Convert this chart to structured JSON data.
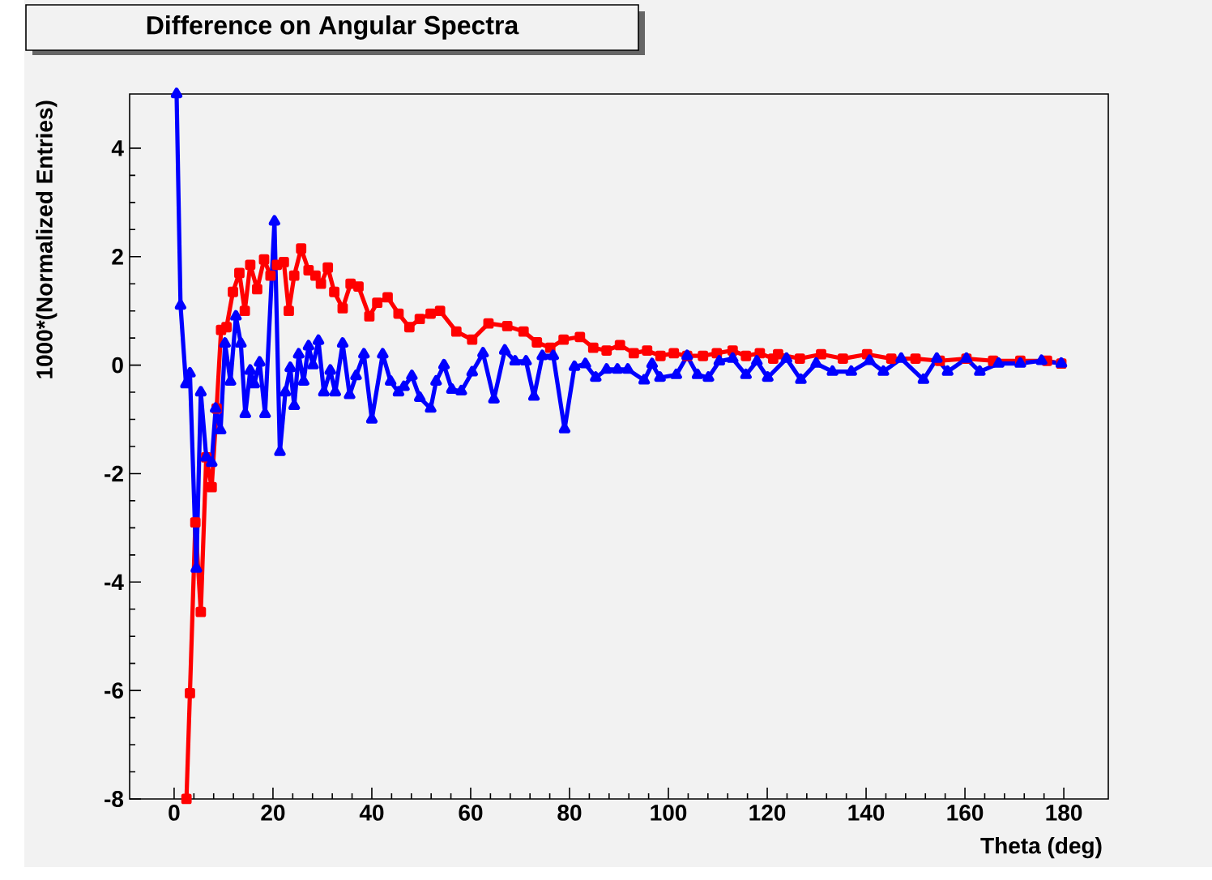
{
  "chart_data": {
    "type": "line",
    "title": "Difference on Angular Spectra",
    "xlabel": "Theta (deg)",
    "ylabel": "1000*(Normalized Entries)",
    "xlim": [
      -9,
      189
    ],
    "ylim": [
      -8,
      5
    ],
    "xticks": [
      0,
      20,
      40,
      60,
      80,
      100,
      120,
      140,
      160,
      180
    ],
    "yticks": [
      -8,
      -6,
      -4,
      -2,
      0,
      2,
      4
    ],
    "series": [
      {
        "color": "#ff0000",
        "marker": "square",
        "x": [
          2.5,
          3.2,
          4.3,
          5.4,
          6.5,
          7.6,
          8.6,
          9.5,
          10.6,
          11.9,
          13.2,
          14.3,
          15.4,
          16.8,
          18.2,
          19.5,
          20.8,
          22.2,
          23.2,
          24.3,
          25.7,
          27.2,
          28.6,
          29.7,
          31.1,
          32.4,
          34.1,
          35.7,
          37.3,
          39.5,
          41.1,
          43.2,
          45.4,
          47.6,
          49.7,
          51.9,
          53.8,
          57.1,
          60.3,
          63.6,
          67.4,
          70.7,
          73.4,
          76.1,
          78.8,
          82.1,
          84.8,
          87.5,
          90.2,
          93,
          95.7,
          98.4,
          101.1,
          103.8,
          107,
          109.8,
          113,
          115.7,
          118.5,
          121.2,
          122.2,
          126.6,
          130.9,
          135.3,
          140.2,
          145.1,
          150,
          154.9,
          160.3,
          165.7,
          171.2,
          176.6,
          179.5
        ],
        "values": [
          -8,
          -6.05,
          -2.9,
          -4.55,
          -1.7,
          -2.25,
          -0.8,
          0.65,
          0.7,
          1.35,
          1.7,
          1.0,
          1.85,
          1.4,
          1.95,
          1.65,
          1.85,
          1.9,
          1.0,
          1.65,
          2.15,
          1.75,
          1.65,
          1.5,
          1.8,
          1.35,
          1.05,
          1.5,
          1.45,
          0.9,
          1.15,
          1.25,
          0.95,
          0.7,
          0.85,
          0.95,
          1.0,
          0.62,
          0.47,
          0.77,
          0.72,
          0.62,
          0.42,
          0.32,
          0.47,
          0.52,
          0.32,
          0.27,
          0.37,
          0.22,
          0.27,
          0.17,
          0.22,
          0.17,
          0.17,
          0.22,
          0.27,
          0.17,
          0.22,
          0.12,
          0.2,
          0.12,
          0.2,
          0.12,
          0.2,
          0.12,
          0.12,
          0.08,
          0.12,
          0.08,
          0.08,
          0.08,
          0.03
        ]
      },
      {
        "color": "#0000ff",
        "marker": "triangle",
        "x": [
          0.5,
          1.3,
          2.4,
          3.2,
          4.5,
          5.4,
          6.5,
          7.6,
          8.4,
          9.4,
          10.3,
          11.4,
          12.5,
          13.5,
          14.4,
          15.4,
          16.2,
          17.3,
          18.4,
          20.3,
          21.4,
          22.5,
          23.5,
          24.3,
          25.2,
          26.2,
          27.2,
          28.1,
          29.2,
          30.3,
          31.6,
          32.6,
          34.1,
          35.5,
          36.8,
          38.4,
          40,
          42.2,
          43.8,
          45.4,
          46.5,
          48.1,
          49.7,
          51.9,
          53,
          54.6,
          56.2,
          58.1,
          60.3,
          62.5,
          64.7,
          66.9,
          69,
          71.2,
          72.8,
          74.5,
          76.7,
          79,
          81,
          83.2,
          85.3,
          87.5,
          89.7,
          91.8,
          95.1,
          96.7,
          98.3,
          101.6,
          103.8,
          105.9,
          108.1,
          110.3,
          113,
          115.7,
          117.9,
          120.1,
          123.9,
          126.8,
          129.9,
          133.2,
          137,
          140.7,
          143.5,
          147.1,
          151.6,
          154.3,
          156.5,
          160.3,
          163,
          166.8,
          171.2,
          175.5,
          179.5
        ],
        "values": [
          5,
          1.1,
          -0.35,
          -0.15,
          -3.75,
          -0.5,
          -1.7,
          -1.8,
          -0.8,
          -1.2,
          0.4,
          -0.3,
          0.9,
          0.4,
          -0.9,
          -0.1,
          -0.35,
          0.05,
          -0.9,
          2.65,
          -1.6,
          -0.5,
          -0.05,
          -0.75,
          0.2,
          -0.3,
          0.35,
          0,
          0.45,
          -0.5,
          -0.1,
          -0.5,
          0.4,
          -0.55,
          -0.2,
          0.2,
          -1,
          0.2,
          -0.3,
          -0.5,
          -0.4,
          -0.2,
          -0.6,
          -0.8,
          -0.3,
          0,
          -0.45,
          -0.48,
          -0.13,
          0.22,
          -0.63,
          0.27,
          0.07,
          0.07,
          -0.58,
          0.17,
          0.17,
          -1.18,
          -0.03,
          0.02,
          -0.23,
          -0.08,
          -0.08,
          -0.08,
          -0.28,
          0.02,
          -0.23,
          -0.18,
          0.17,
          -0.18,
          -0.23,
          0.07,
          0.12,
          -0.18,
          0.07,
          -0.23,
          0.12,
          -0.27,
          0.03,
          -0.12,
          -0.12,
          0.08,
          -0.12,
          0.12,
          -0.27,
          0.12,
          -0.12,
          0.12,
          -0.12,
          0.03,
          0.03,
          0.08,
          0.03
        ]
      }
    ]
  }
}
